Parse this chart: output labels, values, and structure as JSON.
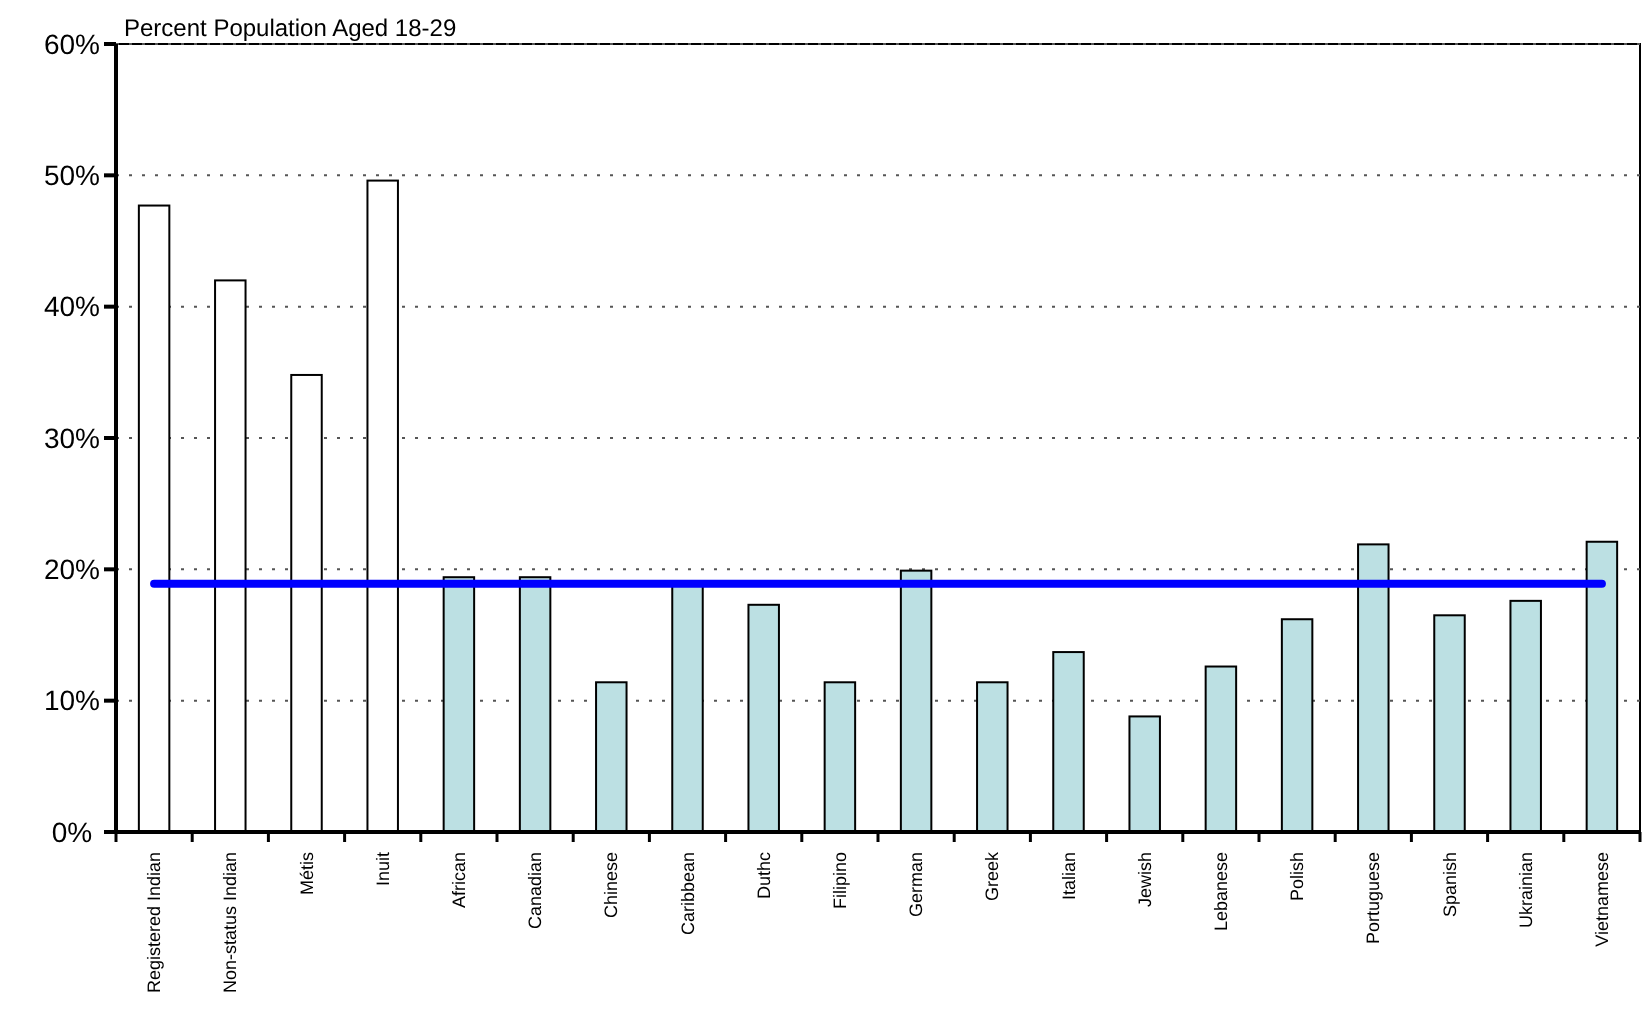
{
  "chart_data": {
    "type": "bar",
    "title": "Percent Population Aged 18-29",
    "categories": [
      "Registered Indian",
      "Non-status Indian",
      "Métis",
      "Inuit",
      "African",
      "Canadian",
      "Chinese",
      "Caribbean",
      "Duthc",
      "Filipino",
      "German",
      "Greek",
      "Italian",
      "Jewish",
      "Lebanese",
      "Polish",
      "Portuguese",
      "Spanish",
      "Ukrainian",
      "Vietnamese"
    ],
    "series": [
      {
        "colors": [
          "#ffffff",
          "#ffffff",
          "#ffffff",
          "#ffffff",
          "#bce0e3",
          "#bce0e3",
          "#bce0e3",
          "#bce0e3",
          "#bce0e3",
          "#bce0e3",
          "#bce0e3",
          "#bce0e3",
          "#bce0e3",
          "#bce0e3",
          "#bce0e3",
          "#bce0e3",
          "#bce0e3",
          "#bce0e3",
          "#bce0e3",
          "#bce0e3"
        ],
        "values": [
          47.7,
          42.0,
          34.8,
          49.6,
          19.4,
          19.4,
          11.4,
          18.8,
          17.3,
          11.4,
          19.9,
          11.4,
          13.7,
          8.8,
          12.6,
          16.2,
          21.9,
          16.5,
          17.6,
          22.1
        ]
      },
      {
        "type": "line",
        "color": "#0000ff",
        "values": [
          18.9,
          18.9,
          18.9,
          18.9,
          18.9,
          18.9,
          18.9,
          18.9,
          18.9,
          18.9,
          18.9,
          18.9,
          18.9,
          18.9,
          18.9,
          18.9,
          18.9,
          18.9,
          18.9,
          18.9
        ]
      }
    ],
    "ylim": [
      0,
      60
    ],
    "yticks": [
      {
        "value": 0,
        "label": "0%"
      },
      {
        "value": 10,
        "label": "10%"
      },
      {
        "value": 20,
        "label": "20%"
      },
      {
        "value": 30,
        "label": "30%"
      },
      {
        "value": 40,
        "label": "40%"
      },
      {
        "value": 50,
        "label": "50%"
      },
      {
        "value": 60,
        "label": "60%"
      }
    ],
    "grid": "y",
    "marker": "none",
    "line_style": "solid"
  }
}
